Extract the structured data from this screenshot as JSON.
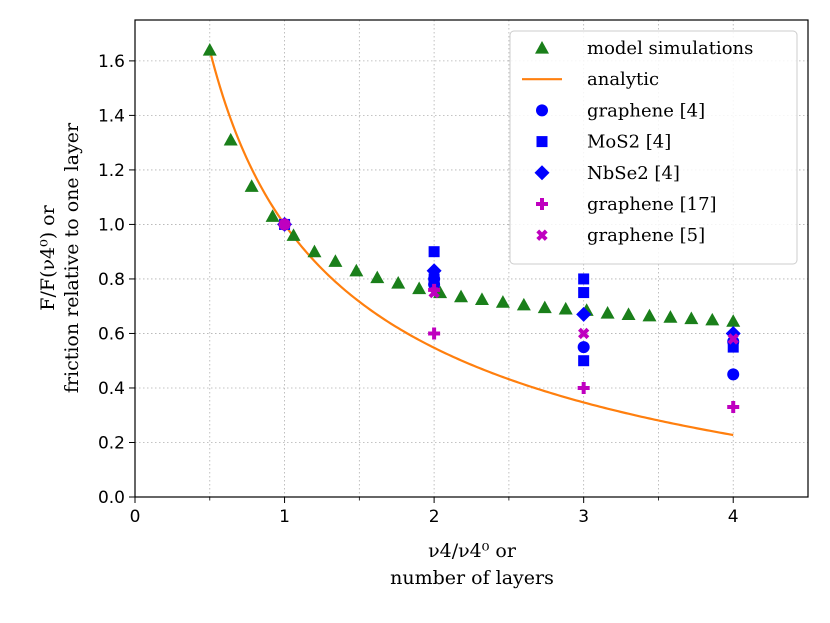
{
  "chart_data": {
    "type": "scatter",
    "title": "",
    "xlabel": [
      "ν4/ν4⁰ or",
      "number of layers"
    ],
    "ylabel": [
      "F/F(ν4⁰) or",
      "friction relative to one layer"
    ],
    "xlim": [
      0,
      4.5
    ],
    "ylim": [
      0,
      1.75
    ],
    "x_ticks": [
      0,
      1,
      2,
      3,
      4
    ],
    "x_tick_labels": [
      "0",
      "1",
      "2",
      "3",
      "4"
    ],
    "x_minor_ticks": [
      0.5,
      1.5,
      2.5,
      3.5
    ],
    "y_ticks": [
      0.0,
      0.2,
      0.4,
      0.6,
      0.8,
      1.0,
      1.2,
      1.4,
      1.6
    ],
    "y_tick_labels": [
      "0.0",
      "0.2",
      "0.4",
      "0.6",
      "0.8",
      "1.0",
      "1.2",
      "1.4",
      "1.6"
    ],
    "grid": true,
    "legend_position": "top-right",
    "series": [
      {
        "name": "model simulations",
        "marker": "triangle",
        "color": "#1a7f1a",
        "x": [
          0.5,
          0.64,
          0.78,
          0.92,
          1.06,
          1.2,
          1.34,
          1.48,
          1.62,
          1.76,
          1.9,
          2.04,
          2.18,
          2.32,
          2.46,
          2.6,
          2.74,
          2.88,
          3.02,
          3.16,
          3.3,
          3.44,
          3.58,
          3.72,
          3.86,
          4.0
        ],
        "y": [
          1.64,
          1.31,
          1.14,
          1.03,
          0.96,
          0.9,
          0.865,
          0.83,
          0.805,
          0.785,
          0.765,
          0.75,
          0.735,
          0.725,
          0.715,
          0.705,
          0.695,
          0.69,
          0.685,
          0.675,
          0.67,
          0.665,
          0.66,
          0.655,
          0.65,
          0.645
        ]
      },
      {
        "name": "analytic",
        "marker": "line",
        "color": "#ff7f0e"
      },
      {
        "name": "graphene [4]",
        "marker": "circle",
        "color": "#0000ff",
        "x": [
          1,
          2,
          2,
          3,
          4,
          4
        ],
        "y": [
          1.0,
          0.8,
          0.78,
          0.55,
          0.57,
          0.45
        ]
      },
      {
        "name": "MoS2 [4]",
        "marker": "square",
        "color": "#0000ff",
        "x": [
          1,
          2,
          2,
          3,
          3,
          3,
          4
        ],
        "y": [
          1.0,
          0.9,
          0.8,
          0.8,
          0.75,
          0.5,
          0.55
        ]
      },
      {
        "name": "NbSe2 [4]",
        "marker": "diamond",
        "color": "#0000ff",
        "x": [
          1,
          2,
          3,
          4
        ],
        "y": [
          1.0,
          0.83,
          0.67,
          0.6
        ]
      },
      {
        "name": "graphene [17]",
        "marker": "plus",
        "color": "#bf00bf",
        "x": [
          1,
          2,
          2,
          3,
          4
        ],
        "y": [
          1.0,
          0.76,
          0.6,
          0.4,
          0.33
        ]
      },
      {
        "name": "graphene [5]",
        "marker": "x",
        "color": "#bf00bf",
        "x": [
          1,
          2,
          3,
          4
        ],
        "y": [
          1.0,
          0.75,
          0.6,
          0.58
        ]
      }
    ]
  }
}
